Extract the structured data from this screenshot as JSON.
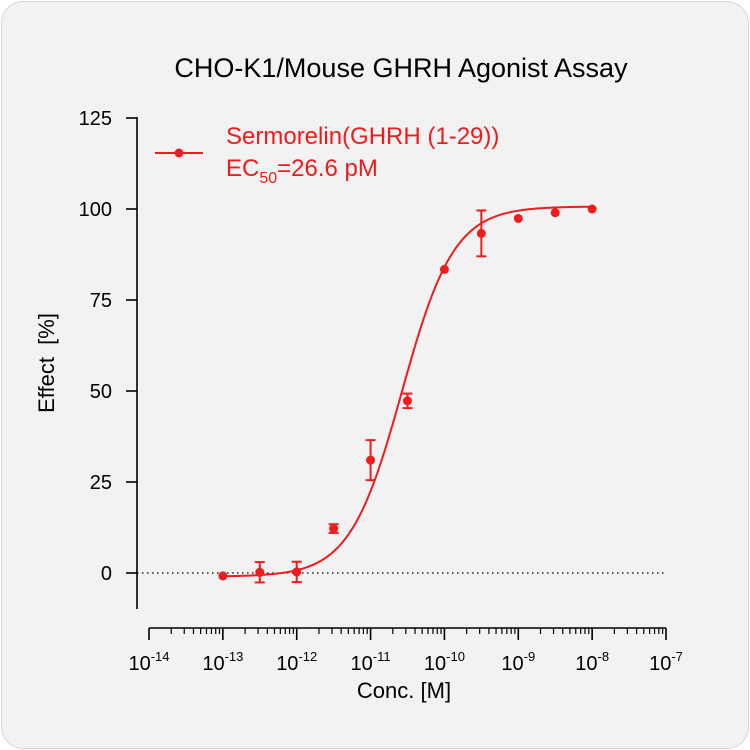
{
  "chart_data": {
    "type": "scatter",
    "title": "CHO-K1/Mouse GHRH Agonist Assay",
    "xlabel": "Conc. [M]",
    "ylabel": "Effect  [%]",
    "x_scale": "log10",
    "xlim": [
      1e-14,
      1e-07
    ],
    "ylim": [
      -10,
      125
    ],
    "x_ticks": [
      {
        "base": "10",
        "exp": "-14"
      },
      {
        "base": "10",
        "exp": "-13"
      },
      {
        "base": "10",
        "exp": "-12"
      },
      {
        "base": "10",
        "exp": "-11"
      },
      {
        "base": "10",
        "exp": "-10"
      },
      {
        "base": "10",
        "exp": "-9"
      },
      {
        "base": "10",
        "exp": "-8"
      },
      {
        "base": "10",
        "exp": "-7"
      }
    ],
    "y_ticks": [
      "0",
      "25",
      "50",
      "75",
      "100",
      "125"
    ],
    "reference_line": {
      "y": 0,
      "style": "dotted"
    },
    "legend": {
      "position": "top-left",
      "series_label": "Sermorelin(GHRH (1-29))",
      "ec50_prefix": "EC",
      "ec50_subscript": "50",
      "ec50_value": "=26.6 pM"
    },
    "color": "#ee1c1c",
    "series": [
      {
        "name": "Sermorelin(GHRH (1-29))",
        "points": [
          {
            "x": 1e-13,
            "y": -0.8,
            "err": 0
          },
          {
            "x": 3.16e-13,
            "y": 0.2,
            "err": 2.8
          },
          {
            "x": 1e-12,
            "y": 0.3,
            "err": 2.8
          },
          {
            "x": 3.16e-12,
            "y": 12.2,
            "err": 1.2
          },
          {
            "x": 1e-11,
            "y": 31.0,
            "err": 5.5
          },
          {
            "x": 3.16e-11,
            "y": 47.3,
            "err": 2.0
          },
          {
            "x": 1e-10,
            "y": 83.4,
            "err": 0
          },
          {
            "x": 3.16e-10,
            "y": 93.3,
            "err": 6.3
          },
          {
            "x": 1e-09,
            "y": 97.4,
            "err": 0
          },
          {
            "x": 3.16e-09,
            "y": 99.0,
            "err": 0
          },
          {
            "x": 1e-08,
            "y": 100.0,
            "err": 0
          }
        ],
        "fit": {
          "model": "four-parameter logistic",
          "bottom": -1,
          "top": 100.7,
          "ec50": 2.66e-11,
          "hill": 1.23
        }
      }
    ]
  }
}
